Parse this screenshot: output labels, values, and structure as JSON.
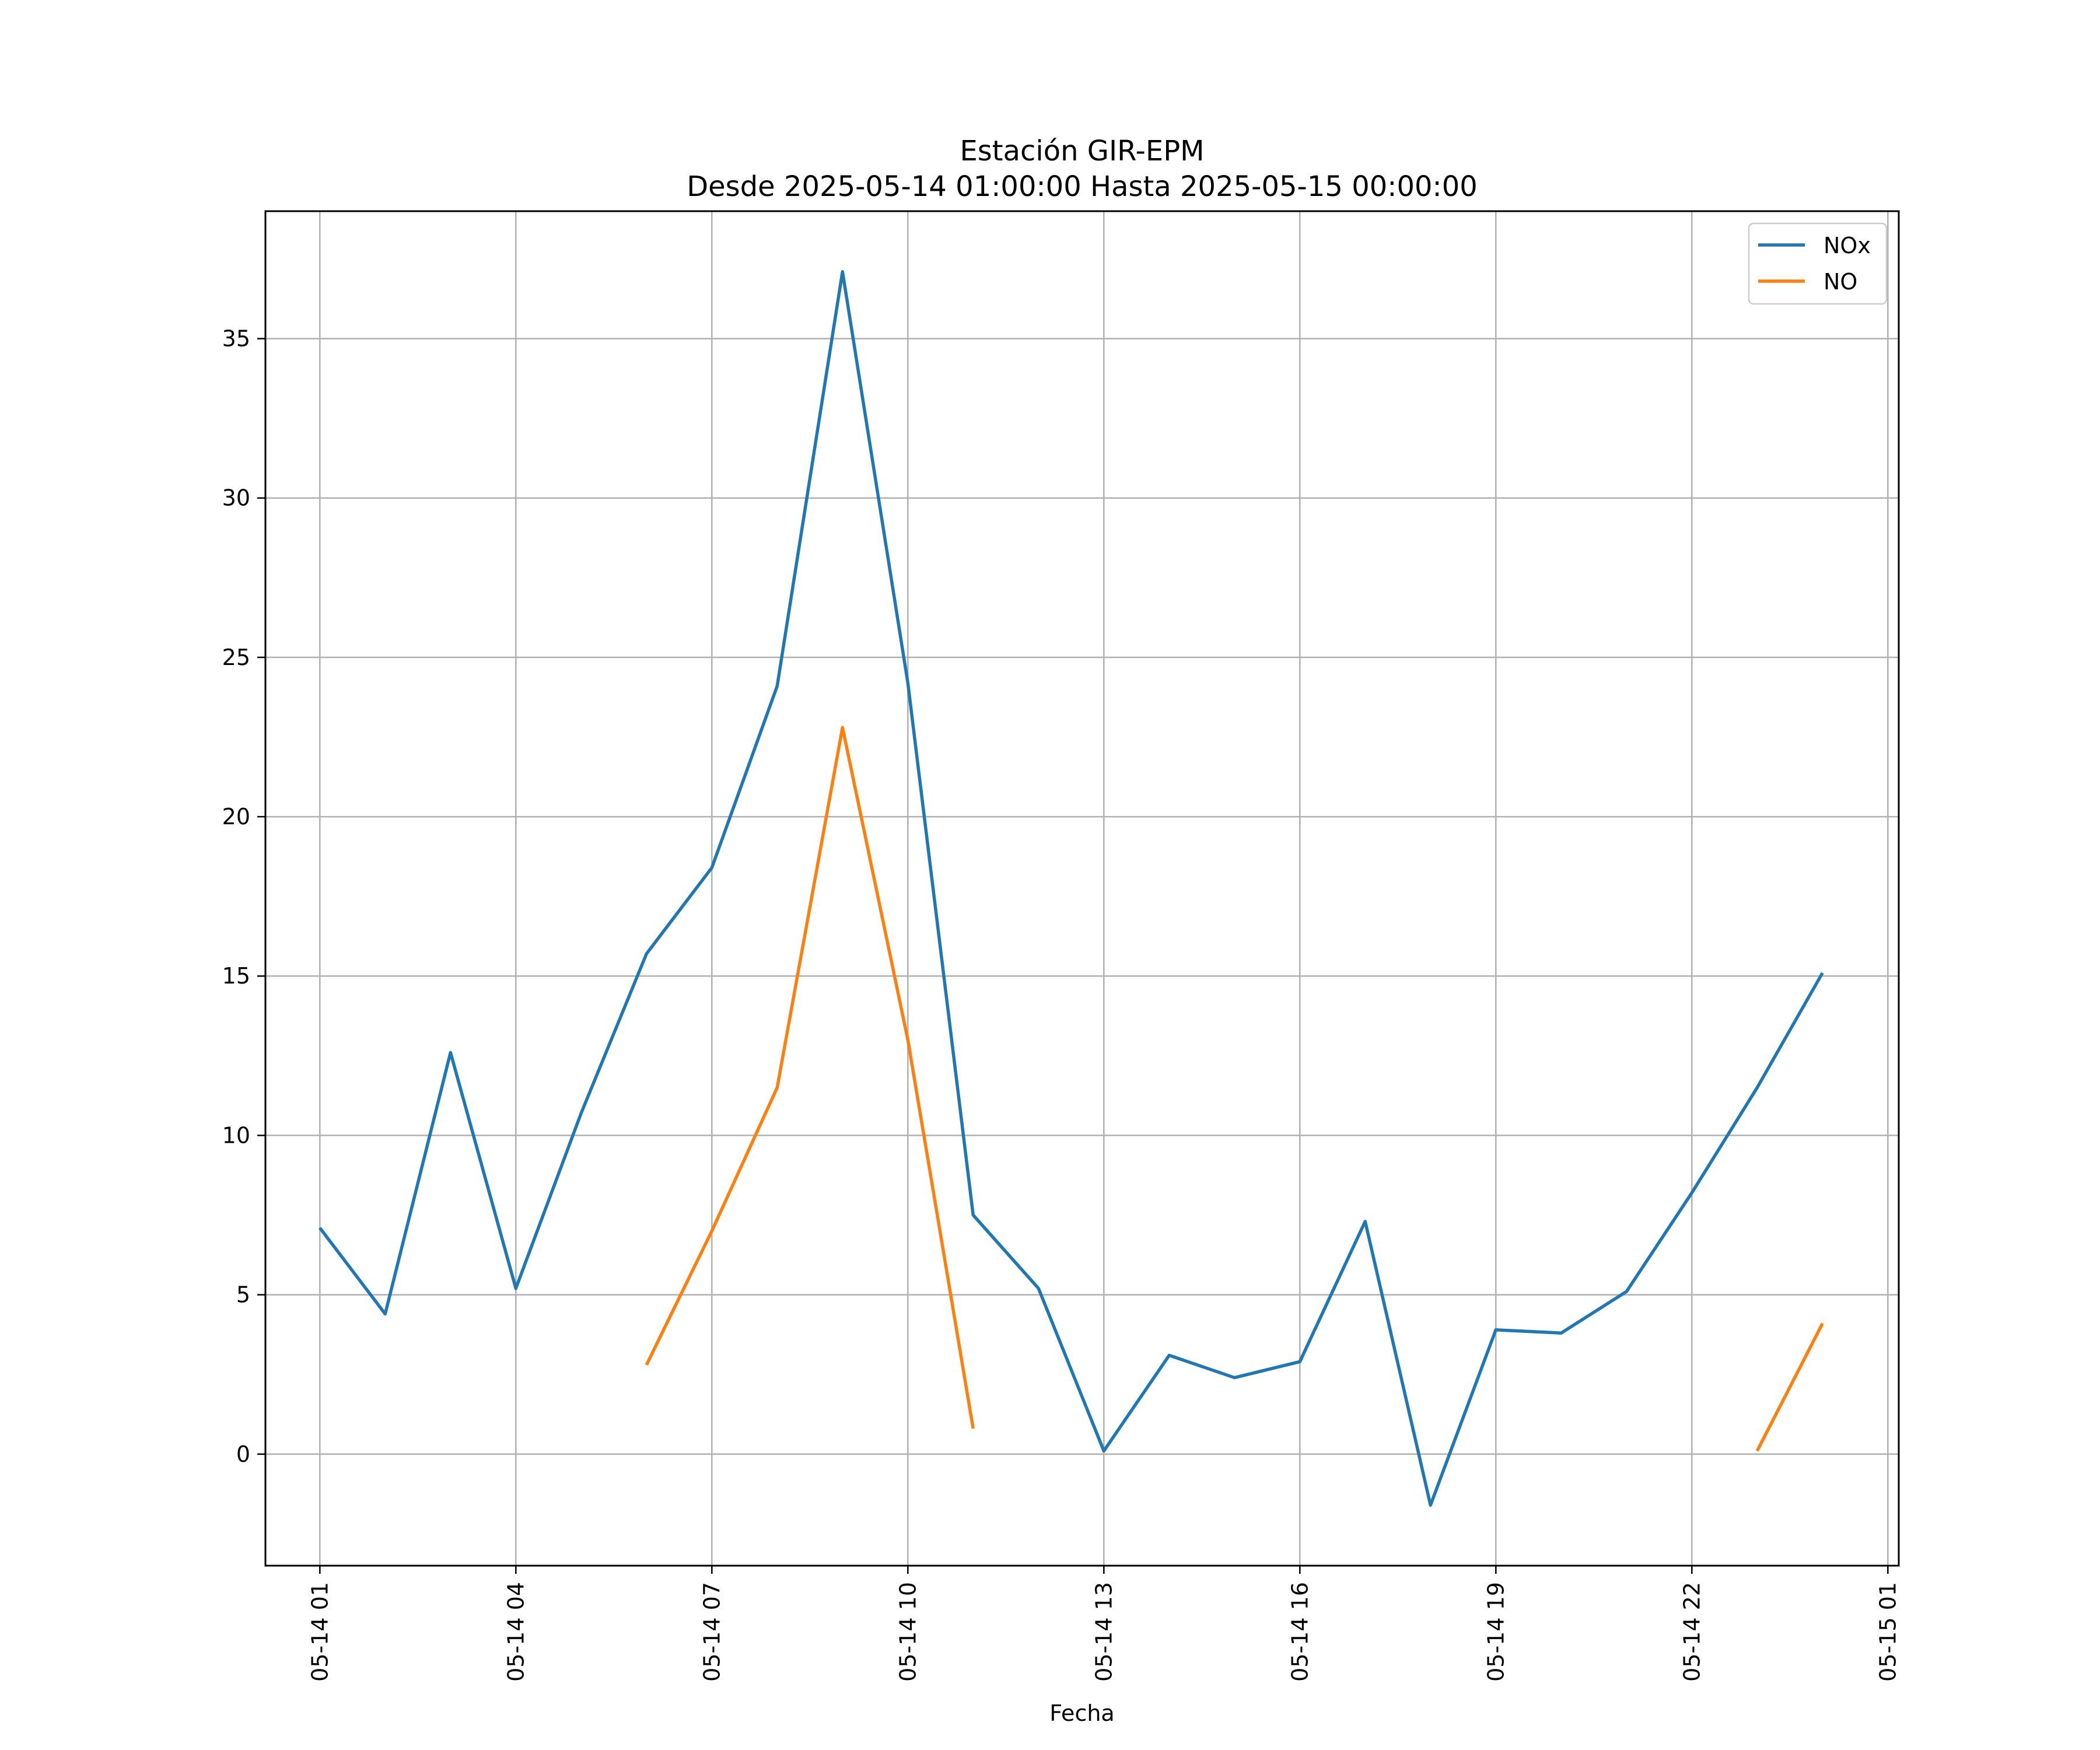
{
  "chart_data": {
    "type": "line",
    "title": "Estación GIR-EPM",
    "subtitle": "Desde 2025-05-14 01:00:00 Hasta 2025-05-15 00:00:00",
    "xlabel": "Fecha",
    "ylabel": "",
    "x": [
      "2025-05-14 01:00",
      "2025-05-14 02:00",
      "2025-05-14 03:00",
      "2025-05-14 04:00",
      "2025-05-14 05:00",
      "2025-05-14 06:00",
      "2025-05-14 07:00",
      "2025-05-14 08:00",
      "2025-05-14 09:00",
      "2025-05-14 10:00",
      "2025-05-14 11:00",
      "2025-05-14 12:00",
      "2025-05-14 13:00",
      "2025-05-14 14:00",
      "2025-05-14 15:00",
      "2025-05-14 16:00",
      "2025-05-14 17:00",
      "2025-05-14 18:00",
      "2025-05-14 19:00",
      "2025-05-14 20:00",
      "2025-05-14 21:00",
      "2025-05-14 22:00",
      "2025-05-14 23:00",
      "2025-05-15 00:00"
    ],
    "xlim": [
      "2025-05-14 00:10",
      "2025-05-15 01:10"
    ],
    "ylim": [
      -3.5,
      39
    ],
    "x_ticks": [
      {
        "x": "2025-05-14 01:00",
        "label": "05-14 01"
      },
      {
        "x": "2025-05-14 04:00",
        "label": "05-14 04"
      },
      {
        "x": "2025-05-14 07:00",
        "label": "05-14 07"
      },
      {
        "x": "2025-05-14 10:00",
        "label": "05-14 10"
      },
      {
        "x": "2025-05-14 13:00",
        "label": "05-14 13"
      },
      {
        "x": "2025-05-14 16:00",
        "label": "05-14 16"
      },
      {
        "x": "2025-05-14 19:00",
        "label": "05-14 19"
      },
      {
        "x": "2025-05-14 22:00",
        "label": "05-14 22"
      },
      {
        "x": "2025-05-15 01:00",
        "label": "05-15 01"
      }
    ],
    "y_ticks": [
      0,
      5,
      10,
      15,
      20,
      25,
      30,
      35
    ],
    "grid": true,
    "legend_position": "top-right",
    "series": [
      {
        "name": "NOx",
        "color": "#1f77b4",
        "values": [
          7.1,
          4.4,
          12.6,
          5.2,
          10.7,
          15.7,
          18.4,
          24.1,
          37.1,
          24.2,
          7.5,
          5.2,
          0.1,
          3.1,
          2.4,
          2.9,
          7.3,
          -1.6,
          3.9,
          3.8,
          5.1,
          8.2,
          11.5,
          15.1
        ]
      },
      {
        "name": "NO",
        "color": "#ff7f0e",
        "values": [
          null,
          null,
          null,
          null,
          null,
          2.8,
          7.0,
          11.5,
          22.8,
          13.0,
          0.8,
          null,
          null,
          null,
          null,
          null,
          null,
          null,
          null,
          null,
          null,
          null,
          0.1,
          4.1
        ]
      }
    ]
  }
}
